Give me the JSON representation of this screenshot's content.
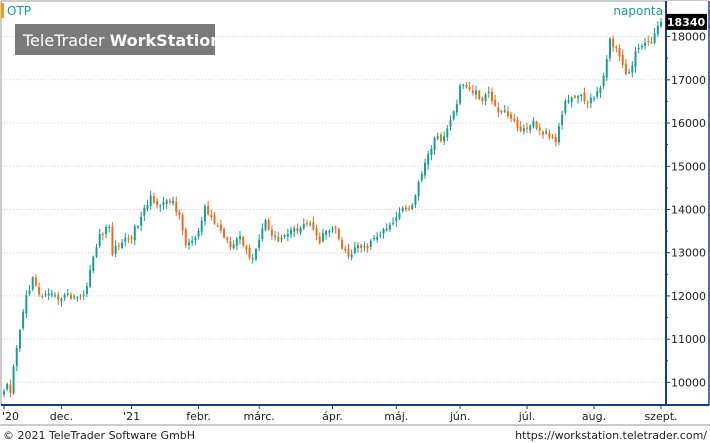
{
  "header": {
    "symbol": "OTP",
    "frequency": "naponta",
    "logo_light": "TeleTrader",
    "logo_bold": "WorkStation"
  },
  "footer": {
    "copyright": "© 2021 TeleTrader Software GmbH",
    "url": "https://workstation.teletrader.com/"
  },
  "colors": {
    "up": "#14a08c",
    "down": "#f06a1a",
    "accent": "#1e3a8a",
    "grid": "#d6d6d6"
  },
  "chart_data": {
    "type": "candlestick",
    "title": "OTP",
    "frequency": "naponta",
    "last_price": "18340",
    "ylim": [
      9500,
      18800
    ],
    "yticks": [
      10000,
      11000,
      12000,
      13000,
      14000,
      15000,
      16000,
      17000,
      18000
    ],
    "grid": true,
    "x_labels": [
      {
        "label": "'20",
        "idx": 0
      },
      {
        "label": "dec.",
        "idx": 18
      },
      {
        "label": "'21",
        "idx": 40
      },
      {
        "label": "febr.",
        "idx": 61
      },
      {
        "label": "márc.",
        "idx": 80
      },
      {
        "label": "ápr.",
        "idx": 103
      },
      {
        "label": "máj.",
        "idx": 123
      },
      {
        "label": "jún.",
        "idx": 143
      },
      {
        "label": "júl.",
        "idx": 164
      },
      {
        "label": "aug.",
        "idx": 185
      },
      {
        "label": "szept.",
        "idx": 206
      }
    ],
    "anchors": [
      [
        0,
        9800
      ],
      [
        1,
        9900
      ],
      [
        2,
        9700
      ],
      [
        3,
        10300
      ],
      [
        5,
        11200
      ],
      [
        7,
        12000
      ],
      [
        9,
        12400
      ],
      [
        11,
        12000
      ],
      [
        13,
        12000
      ],
      [
        16,
        11950
      ],
      [
        19,
        12000
      ],
      [
        22,
        12000
      ],
      [
        25,
        12000
      ],
      [
        27,
        12600
      ],
      [
        30,
        13400
      ],
      [
        33,
        13600
      ],
      [
        34,
        13000
      ],
      [
        36,
        13200
      ],
      [
        40,
        13400
      ],
      [
        43,
        13800
      ],
      [
        46,
        14300
      ],
      [
        49,
        14100
      ],
      [
        53,
        14200
      ],
      [
        55,
        13800
      ],
      [
        57,
        13200
      ],
      [
        60,
        13300
      ],
      [
        62,
        13700
      ],
      [
        63,
        14000
      ],
      [
        65,
        13800
      ],
      [
        68,
        13500
      ],
      [
        71,
        13200
      ],
      [
        74,
        13400
      ],
      [
        76,
        13000
      ],
      [
        78,
        12900
      ],
      [
        80,
        13300
      ],
      [
        82,
        13800
      ],
      [
        84,
        13400
      ],
      [
        86,
        13300
      ],
      [
        88,
        13400
      ],
      [
        91,
        13500
      ],
      [
        94,
        13700
      ],
      [
        97,
        13600
      ],
      [
        99,
        13300
      ],
      [
        101,
        13500
      ],
      [
        104,
        13500
      ],
      [
        106,
        13100
      ],
      [
        108,
        12900
      ],
      [
        110,
        13100
      ],
      [
        113,
        13100
      ],
      [
        116,
        13300
      ],
      [
        119,
        13500
      ],
      [
        121,
        13600
      ],
      [
        123,
        13800
      ],
      [
        125,
        14100
      ],
      [
        127,
        14000
      ],
      [
        129,
        14300
      ],
      [
        131,
        14900
      ],
      [
        133,
        15300
      ],
      [
        135,
        15600
      ],
      [
        138,
        15700
      ],
      [
        140,
        16000
      ],
      [
        142,
        16500
      ],
      [
        143,
        16900
      ],
      [
        145,
        16800
      ],
      [
        148,
        16700
      ],
      [
        150,
        16500
      ],
      [
        152,
        16700
      ],
      [
        155,
        16300
      ],
      [
        157,
        16300
      ],
      [
        159,
        16100
      ],
      [
        161,
        15900
      ],
      [
        164,
        15800
      ],
      [
        166,
        16000
      ],
      [
        168,
        15800
      ],
      [
        171,
        15700
      ],
      [
        173,
        15600
      ],
      [
        174,
        16000
      ],
      [
        176,
        16500
      ],
      [
        178,
        16600
      ],
      [
        181,
        16600
      ],
      [
        183,
        16500
      ],
      [
        185,
        16600
      ],
      [
        187,
        16800
      ],
      [
        189,
        17500
      ],
      [
        190,
        17900
      ],
      [
        192,
        17700
      ],
      [
        194,
        17300
      ],
      [
        196,
        17100
      ],
      [
        198,
        17600
      ],
      [
        200,
        17800
      ],
      [
        203,
        17900
      ],
      [
        205,
        18200
      ],
      [
        206,
        18340
      ]
    ]
  }
}
